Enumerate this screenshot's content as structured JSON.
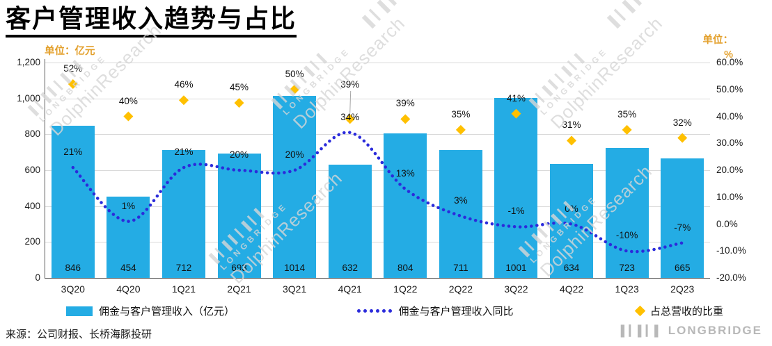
{
  "title": "客户管理收入趋势与占比",
  "units": {
    "left": "单位：亿元",
    "right_line1": "单位：",
    "right_line2": "%"
  },
  "source": "来源：公司财报、长桥海豚投研",
  "watermark": {
    "bars": "▌▎▌▍▎▌▎▍",
    "brand": "LONGBRIDGE",
    "research": "DolphinResearch"
  },
  "logo": {
    "bars": "▌▎▌▎▌",
    "text": "LONGBRIDGE"
  },
  "colors": {
    "bar": "#24ACE4",
    "line": "#2B2BDB",
    "diamond": "#FFC000",
    "unit": "#E3A02C",
    "grid": "#D9D9D9",
    "axis": "#595959",
    "text": "#1A1A1A",
    "watermark": "#D7D7D7",
    "leader": "#A6A6A6"
  },
  "legend": [
    {
      "label": "佣金与客户管理收入（亿元）",
      "marker": "bar"
    },
    {
      "label": "佣金与客户管理收入同比",
      "marker": "dotted-line"
    },
    {
      "label": "占总营收的比重",
      "marker": "diamond"
    }
  ],
  "chart_data": {
    "type": "bar+line+scatter",
    "categories": [
      "3Q20",
      "4Q20",
      "1Q21",
      "2Q21",
      "3Q21",
      "4Q21",
      "1Q22",
      "2Q22",
      "3Q22",
      "4Q22",
      "1Q23",
      "2Q23"
    ],
    "series": [
      {
        "name": "佣金与客户管理收入（亿元）",
        "type": "bar",
        "axis": "left",
        "values": [
          846,
          454,
          712,
          693,
          1014,
          632,
          804,
          711,
          1001,
          634,
          723,
          665
        ]
      },
      {
        "name": "佣金与客户管理收入同比",
        "type": "line",
        "axis": "right",
        "values_pct": [
          21,
          1,
          21,
          20,
          20,
          34,
          13,
          3,
          -1,
          0,
          -10,
          -7
        ],
        "labels": [
          "21%",
          "1%",
          "21%",
          "20%",
          "20%",
          "34%",
          "13%",
          "3%",
          "-1%",
          "0%",
          "-10%",
          "-7%"
        ]
      },
      {
        "name": "占总营收的比重",
        "type": "scatter-diamond",
        "axis": "right",
        "values_pct": [
          52,
          40,
          46,
          45,
          50,
          39,
          39,
          35,
          41,
          31,
          35,
          32
        ],
        "labels": [
          "52%",
          "40%",
          "46%",
          "45%",
          "50%",
          "39%",
          "39%",
          "35%",
          "41%",
          "31%",
          "35%",
          "32%"
        ]
      }
    ],
    "callout_index": 5,
    "left_axis": {
      "min": 0,
      "max": 1200,
      "step": 200,
      "tick_labels": [
        "1,200",
        "1,000",
        "800",
        "600",
        "400",
        "200",
        "0"
      ]
    },
    "right_axis": {
      "min": -20,
      "max": 60,
      "step": 10,
      "tick_labels": [
        "60.0%",
        "50.0%",
        "40.0%",
        "30.0%",
        "20.0%",
        "10.0%",
        "0.0%",
        "-10.0%",
        "-20.0%"
      ]
    },
    "grid": true,
    "legend_position": "bottom"
  }
}
